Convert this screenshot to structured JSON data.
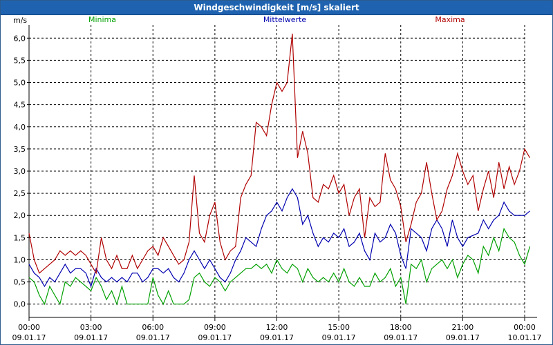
{
  "window": {
    "title": "Windgeschwindigkeit [m/s] skaliert"
  },
  "chart_data": {
    "type": "line",
    "ylabel": "m/s",
    "ylim": [
      -0.3,
      6.3
    ],
    "yticks": [
      "0,0",
      "0,5",
      "1,0",
      "1,5",
      "2,0",
      "2,5",
      "3,0",
      "3,5",
      "4,0",
      "4,5",
      "5,0",
      "5,5",
      "6,0"
    ],
    "ytick_values": [
      0,
      0.5,
      1,
      1.5,
      2,
      2.5,
      3,
      3.5,
      4,
      4.5,
      5,
      5.5,
      6
    ],
    "xlim": [
      0,
      24
    ],
    "xtick_values": [
      0,
      3,
      6,
      9,
      12,
      15,
      18,
      21,
      24
    ],
    "xtick_times": [
      "00:00",
      "03:00",
      "06:00",
      "09:00",
      "12:00",
      "15:00",
      "18:00",
      "21:00",
      "00:00"
    ],
    "xtick_dates": [
      "09.01.17",
      "09.01.17",
      "09.01.17",
      "09.01.17",
      "09.01.17",
      "09.01.17",
      "09.01.17",
      "09.01.17",
      "10.01.17"
    ],
    "grid": true,
    "legend_position": "top",
    "series": [
      {
        "name": "Minima",
        "color": "#00a000",
        "points": [
          [
            0,
            0.6
          ],
          [
            0.25,
            0.5
          ],
          [
            0.5,
            0.2
          ],
          [
            0.75,
            0
          ],
          [
            1,
            0.4
          ],
          [
            1.25,
            0.2
          ],
          [
            1.5,
            0
          ],
          [
            1.75,
            0.5
          ],
          [
            2,
            0.4
          ],
          [
            2.25,
            0.6
          ],
          [
            2.5,
            0.5
          ],
          [
            2.75,
            0.4
          ],
          [
            3,
            0.3
          ],
          [
            3.25,
            0.6
          ],
          [
            3.5,
            0.4
          ],
          [
            3.75,
            0.1
          ],
          [
            4,
            0.3
          ],
          [
            4.25,
            0
          ],
          [
            4.5,
            0.4
          ],
          [
            4.75,
            0
          ],
          [
            5,
            0
          ],
          [
            5.25,
            0
          ],
          [
            5.5,
            0
          ],
          [
            5.75,
            0
          ],
          [
            6,
            0.6
          ],
          [
            6.25,
            0.2
          ],
          [
            6.5,
            0
          ],
          [
            6.75,
            0.3
          ],
          [
            7,
            0
          ],
          [
            7.25,
            0
          ],
          [
            7.5,
            0
          ],
          [
            7.75,
            0.1
          ],
          [
            8,
            0.6
          ],
          [
            8.25,
            0.7
          ],
          [
            8.5,
            0.5
          ],
          [
            8.75,
            0.4
          ],
          [
            9,
            0.6
          ],
          [
            9.25,
            0.5
          ],
          [
            9.5,
            0.3
          ],
          [
            9.75,
            0.5
          ],
          [
            10,
            0.6
          ],
          [
            10.25,
            0.7
          ],
          [
            10.5,
            0.8
          ],
          [
            10.75,
            0.8
          ],
          [
            11,
            0.9
          ],
          [
            11.25,
            0.8
          ],
          [
            11.5,
            0.9
          ],
          [
            11.75,
            0.7
          ],
          [
            12,
            1.0
          ],
          [
            12.25,
            0.8
          ],
          [
            12.5,
            0.7
          ],
          [
            12.75,
            0.9
          ],
          [
            13,
            0.8
          ],
          [
            13.25,
            0.5
          ],
          [
            13.5,
            0.8
          ],
          [
            13.75,
            0.6
          ],
          [
            14,
            0.5
          ],
          [
            14.25,
            0.6
          ],
          [
            14.5,
            0.5
          ],
          [
            14.75,
            0.7
          ],
          [
            15,
            0.5
          ],
          [
            15.25,
            0.8
          ],
          [
            15.5,
            0.5
          ],
          [
            15.75,
            0.4
          ],
          [
            16,
            0.6
          ],
          [
            16.25,
            0.4
          ],
          [
            16.5,
            0.4
          ],
          [
            16.75,
            0.7
          ],
          [
            17,
            0.5
          ],
          [
            17.25,
            0.6
          ],
          [
            17.5,
            0.8
          ],
          [
            17.75,
            0.4
          ],
          [
            18,
            0.6
          ],
          [
            18.25,
            0
          ],
          [
            18.5,
            0.9
          ],
          [
            18.75,
            0.8
          ],
          [
            19,
            1.0
          ],
          [
            19.25,
            0.5
          ],
          [
            19.5,
            0.8
          ],
          [
            19.75,
            0.9
          ],
          [
            20,
            1.0
          ],
          [
            20.25,
            0.8
          ],
          [
            20.5,
            1.0
          ],
          [
            20.75,
            0.6
          ],
          [
            21,
            0.9
          ],
          [
            21.25,
            1.1
          ],
          [
            21.5,
            1.0
          ],
          [
            21.75,
            0.7
          ],
          [
            22,
            1.3
          ],
          [
            22.25,
            1.1
          ],
          [
            22.5,
            1.5
          ],
          [
            22.75,
            1.2
          ],
          [
            23,
            1.7
          ],
          [
            23.25,
            1.5
          ],
          [
            23.5,
            1.4
          ],
          [
            23.75,
            1.1
          ],
          [
            24,
            0.9
          ],
          [
            24.25,
            1.3
          ]
        ]
      },
      {
        "name": "Mittelwerte",
        "color": "#0000b0",
        "points": [
          [
            0,
            0.9
          ],
          [
            0.25,
            0.7
          ],
          [
            0.5,
            0.6
          ],
          [
            0.75,
            0.4
          ],
          [
            1,
            0.6
          ],
          [
            1.25,
            0.5
          ],
          [
            1.5,
            0.7
          ],
          [
            1.75,
            0.9
          ],
          [
            2,
            0.7
          ],
          [
            2.25,
            0.8
          ],
          [
            2.5,
            0.8
          ],
          [
            2.75,
            0.7
          ],
          [
            3,
            0.4
          ],
          [
            3.25,
            0.8
          ],
          [
            3.5,
            0.6
          ],
          [
            3.75,
            0.5
          ],
          [
            4,
            0.6
          ],
          [
            4.25,
            0.5
          ],
          [
            4.5,
            0.6
          ],
          [
            4.75,
            0.5
          ],
          [
            5,
            0.7
          ],
          [
            5.25,
            0.7
          ],
          [
            5.5,
            0.5
          ],
          [
            5.75,
            0.6
          ],
          [
            6,
            0.8
          ],
          [
            6.25,
            0.8
          ],
          [
            6.5,
            0.7
          ],
          [
            6.75,
            0.8
          ],
          [
            7,
            0.6
          ],
          [
            7.25,
            0.5
          ],
          [
            7.5,
            0.7
          ],
          [
            7.75,
            1.0
          ],
          [
            8,
            1.2
          ],
          [
            8.25,
            1.0
          ],
          [
            8.5,
            0.8
          ],
          [
            8.75,
            1.0
          ],
          [
            9,
            0.8
          ],
          [
            9.25,
            0.6
          ],
          [
            9.5,
            0.5
          ],
          [
            9.75,
            0.7
          ],
          [
            10,
            1.0
          ],
          [
            10.25,
            1.2
          ],
          [
            10.5,
            1.5
          ],
          [
            10.75,
            1.4
          ],
          [
            11,
            1.3
          ],
          [
            11.25,
            1.7
          ],
          [
            11.5,
            2.0
          ],
          [
            11.75,
            2.1
          ],
          [
            12,
            2.3
          ],
          [
            12.25,
            2.1
          ],
          [
            12.5,
            2.4
          ],
          [
            12.75,
            2.6
          ],
          [
            13,
            2.4
          ],
          [
            13.25,
            1.8
          ],
          [
            13.5,
            2.0
          ],
          [
            13.75,
            1.6
          ],
          [
            14,
            1.3
          ],
          [
            14.25,
            1.5
          ],
          [
            14.5,
            1.4
          ],
          [
            14.75,
            1.6
          ],
          [
            15,
            1.5
          ],
          [
            15.25,
            1.7
          ],
          [
            15.5,
            1.3
          ],
          [
            15.75,
            1.4
          ],
          [
            16,
            1.6
          ],
          [
            16.25,
            1.2
          ],
          [
            16.5,
            1.0
          ],
          [
            16.75,
            1.6
          ],
          [
            17,
            1.4
          ],
          [
            17.25,
            1.5
          ],
          [
            17.5,
            1.8
          ],
          [
            17.75,
            1.6
          ],
          [
            18,
            1.1
          ],
          [
            18.25,
            0.8
          ],
          [
            18.5,
            1.7
          ],
          [
            18.75,
            1.6
          ],
          [
            19,
            1.5
          ],
          [
            19.25,
            1.2
          ],
          [
            19.5,
            1.7
          ],
          [
            19.75,
            1.9
          ],
          [
            20,
            1.7
          ],
          [
            20.25,
            1.3
          ],
          [
            20.5,
            1.9
          ],
          [
            20.75,
            1.5
          ],
          [
            21,
            1.3
          ],
          [
            21.25,
            1.5
          ],
          [
            21.75,
            1.6
          ],
          [
            22,
            1.9
          ],
          [
            22.25,
            1.7
          ],
          [
            22.5,
            1.9
          ],
          [
            22.75,
            2.0
          ],
          [
            23,
            2.3
          ],
          [
            23.25,
            2.1
          ],
          [
            23.5,
            2.0
          ],
          [
            23.75,
            2.0
          ],
          [
            24,
            2.0
          ],
          [
            24.25,
            2.1
          ]
        ]
      },
      {
        "name": "Maxima",
        "color": "#b00000",
        "points": [
          [
            0,
            1.6
          ],
          [
            0.25,
            1.0
          ],
          [
            0.5,
            0.7
          ],
          [
            0.75,
            0.8
          ],
          [
            1,
            0.9
          ],
          [
            1.25,
            1.0
          ],
          [
            1.5,
            1.2
          ],
          [
            1.75,
            1.1
          ],
          [
            2,
            1.2
          ],
          [
            2.25,
            1.1
          ],
          [
            2.5,
            1.2
          ],
          [
            2.75,
            1.1
          ],
          [
            3,
            0.9
          ],
          [
            3.25,
            0.7
          ],
          [
            3.5,
            1.5
          ],
          [
            3.75,
            1.0
          ],
          [
            4,
            0.8
          ],
          [
            4.25,
            1.1
          ],
          [
            4.5,
            0.8
          ],
          [
            4.75,
            0.8
          ],
          [
            5,
            1.1
          ],
          [
            5.25,
            0.8
          ],
          [
            5.5,
            1.0
          ],
          [
            5.75,
            1.2
          ],
          [
            6,
            1.3
          ],
          [
            6.25,
            1.1
          ],
          [
            6.5,
            1.5
          ],
          [
            6.75,
            1.3
          ],
          [
            7,
            1.1
          ],
          [
            7.25,
            0.9
          ],
          [
            7.5,
            1.0
          ],
          [
            7.75,
            1.4
          ],
          [
            8,
            2.9
          ],
          [
            8.25,
            1.6
          ],
          [
            8.5,
            1.4
          ],
          [
            8.75,
            2.0
          ],
          [
            9,
            2.3
          ],
          [
            9.25,
            1.4
          ],
          [
            9.5,
            1.0
          ],
          [
            9.75,
            1.2
          ],
          [
            10,
            1.3
          ],
          [
            10.25,
            2.4
          ],
          [
            10.5,
            2.7
          ],
          [
            10.75,
            2.9
          ],
          [
            11,
            4.1
          ],
          [
            11.25,
            4.0
          ],
          [
            11.5,
            3.8
          ],
          [
            11.75,
            4.5
          ],
          [
            12,
            5.0
          ],
          [
            12.25,
            4.8
          ],
          [
            12.5,
            5.0
          ],
          [
            12.75,
            6.1
          ],
          [
            13,
            3.3
          ],
          [
            13.25,
            3.9
          ],
          [
            13.5,
            3.4
          ],
          [
            13.75,
            2.4
          ],
          [
            14,
            2.3
          ],
          [
            14.25,
            2.7
          ],
          [
            14.5,
            2.6
          ],
          [
            14.75,
            2.9
          ],
          [
            15,
            2.5
          ],
          [
            15.25,
            2.7
          ],
          [
            15.5,
            2.0
          ],
          [
            15.75,
            2.4
          ],
          [
            16,
            2.6
          ],
          [
            16.25,
            1.5
          ],
          [
            16.5,
            2.4
          ],
          [
            16.75,
            2.2
          ],
          [
            17,
            2.3
          ],
          [
            17.25,
            3.4
          ],
          [
            17.5,
            2.8
          ],
          [
            17.75,
            2.6
          ],
          [
            18,
            2.2
          ],
          [
            18.25,
            1.4
          ],
          [
            18.5,
            1.8
          ],
          [
            18.75,
            2.3
          ],
          [
            19,
            2.5
          ],
          [
            19.25,
            3.2
          ],
          [
            19.5,
            2.5
          ],
          [
            19.75,
            1.9
          ],
          [
            20,
            2.1
          ],
          [
            20.25,
            2.6
          ],
          [
            20.5,
            2.9
          ],
          [
            20.75,
            3.4
          ],
          [
            21,
            3.0
          ],
          [
            21.25,
            2.7
          ],
          [
            21.5,
            2.9
          ],
          [
            21.75,
            2.1
          ],
          [
            22,
            2.6
          ],
          [
            22.25,
            3.0
          ],
          [
            22.5,
            2.4
          ],
          [
            22.75,
            3.2
          ],
          [
            23,
            2.6
          ],
          [
            23.25,
            3.1
          ],
          [
            23.5,
            2.7
          ],
          [
            23.75,
            3.0
          ],
          [
            24,
            3.5
          ],
          [
            24.25,
            3.3
          ]
        ]
      }
    ]
  }
}
